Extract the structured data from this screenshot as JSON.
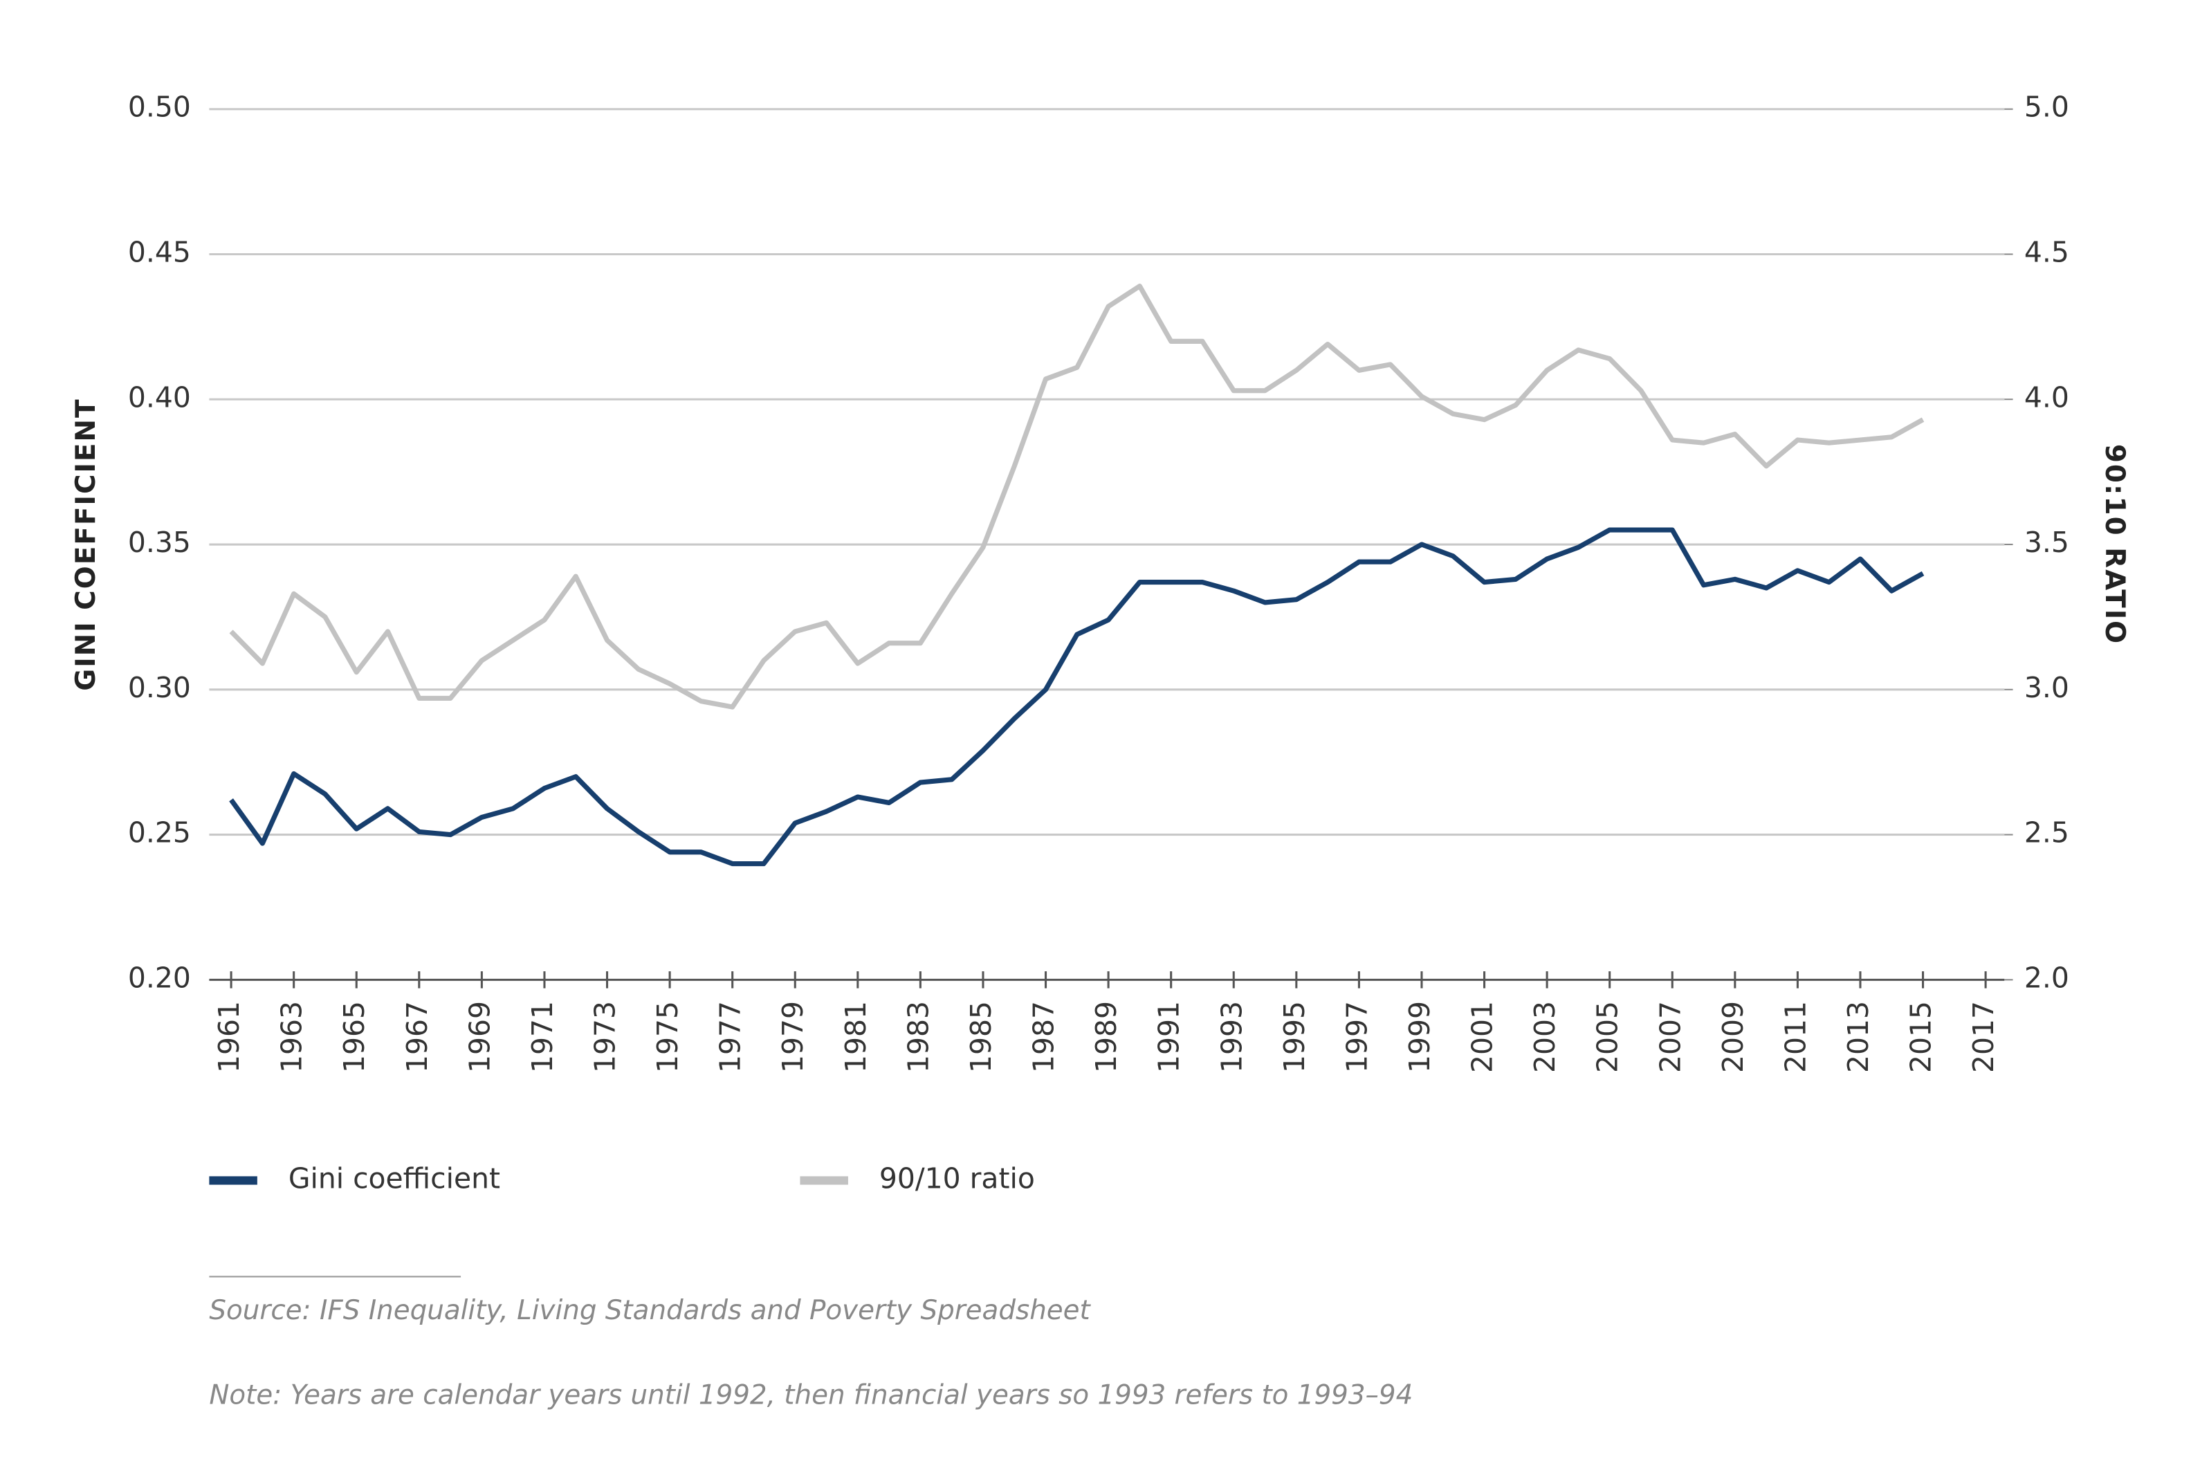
{
  "chart_data": {
    "type": "line",
    "y_label": "GINI COEFFICIENT",
    "y2_label": "90:10 RATIO",
    "x": [
      1961,
      1962,
      1963,
      1964,
      1965,
      1966,
      1967,
      1968,
      1969,
      1970,
      1971,
      1972,
      1973,
      1974,
      1975,
      1976,
      1977,
      1978,
      1979,
      1980,
      1981,
      1982,
      1983,
      1984,
      1985,
      1986,
      1987,
      1988,
      1989,
      1990,
      1991,
      1992,
      1993,
      1994,
      1995,
      1996,
      1997,
      1998,
      1999,
      2000,
      2001,
      2002,
      2003,
      2004,
      2005,
      2006,
      2007,
      2008,
      2009,
      2010,
      2011,
      2012,
      2013,
      2014,
      2015
    ],
    "series": [
      {
        "name": "Gini coefficient",
        "color": "#173f6e",
        "values": [
          0.262,
          0.247,
          0.271,
          0.264,
          0.252,
          0.259,
          0.251,
          0.25,
          0.256,
          0.259,
          0.266,
          0.27,
          0.259,
          0.251,
          0.244,
          0.244,
          0.24,
          0.24,
          0.254,
          0.258,
          0.263,
          0.261,
          0.268,
          0.269,
          0.279,
          0.29,
          0.3,
          0.319,
          0.324,
          0.337,
          0.337,
          0.337,
          0.334,
          0.33,
          0.331,
          0.337,
          0.344,
          0.344,
          0.35,
          0.346,
          0.337,
          0.338,
          0.345,
          0.349,
          0.355,
          0.355,
          0.355,
          0.336,
          0.338,
          0.335,
          0.341,
          0.337,
          0.345,
          0.334,
          0.34
        ]
      },
      {
        "name": "90/10 ratio",
        "color": "#c2c2c2",
        "axis": "y2",
        "values": [
          3.2,
          3.09,
          3.33,
          3.25,
          3.06,
          3.2,
          2.97,
          2.97,
          3.1,
          3.17,
          3.24,
          3.39,
          3.17,
          3.07,
          3.02,
          2.96,
          2.94,
          3.1,
          3.2,
          3.23,
          3.09,
          3.16,
          3.16,
          3.33,
          3.49,
          3.77,
          4.07,
          4.11,
          4.32,
          4.39,
          4.2,
          4.2,
          4.03,
          4.03,
          4.1,
          4.19,
          4.1,
          4.12,
          4.01,
          3.95,
          3.93,
          3.98,
          4.1,
          4.17,
          4.14,
          4.03,
          3.86,
          3.85,
          3.88,
          3.77,
          3.86,
          3.85,
          3.86,
          3.87,
          3.93
        ]
      }
    ],
    "xlim": [
      1960.3,
      2017.6
    ],
    "xticks": [
      1961,
      1963,
      1965,
      1967,
      1969,
      1971,
      1973,
      1975,
      1977,
      1979,
      1981,
      1983,
      1985,
      1987,
      1989,
      1991,
      1993,
      1995,
      1997,
      1999,
      2001,
      2003,
      2005,
      2007,
      2009,
      2011,
      2013,
      2015,
      2017
    ],
    "ylim": [
      0.2,
      0.5
    ],
    "yticks": [
      {
        "value": 0.2,
        "label": "0.20"
      },
      0.25,
      {
        "value": 0.3,
        "label": "0.30"
      },
      0.35,
      {
        "value": 0.4,
        "label": "0.40"
      },
      0.45,
      {
        "value": 0.5,
        "label": "0.50"
      }
    ],
    "y2lim": [
      2,
      5
    ],
    "y2ticks": [
      {
        "value": 2,
        "label": "2.0"
      },
      2.5,
      {
        "value": 3,
        "label": "3.0"
      },
      3.5,
      {
        "value": 4,
        "label": "4.0"
      },
      4.5,
      {
        "value": 5,
        "label": "5.0"
      }
    ],
    "grid": true,
    "source": "Source: IFS Inequality, Living Standards and Poverty Spreadsheet",
    "note": "Note: Years are calendar years until 1992, then financial years so 1993 refers to 1993–94"
  }
}
